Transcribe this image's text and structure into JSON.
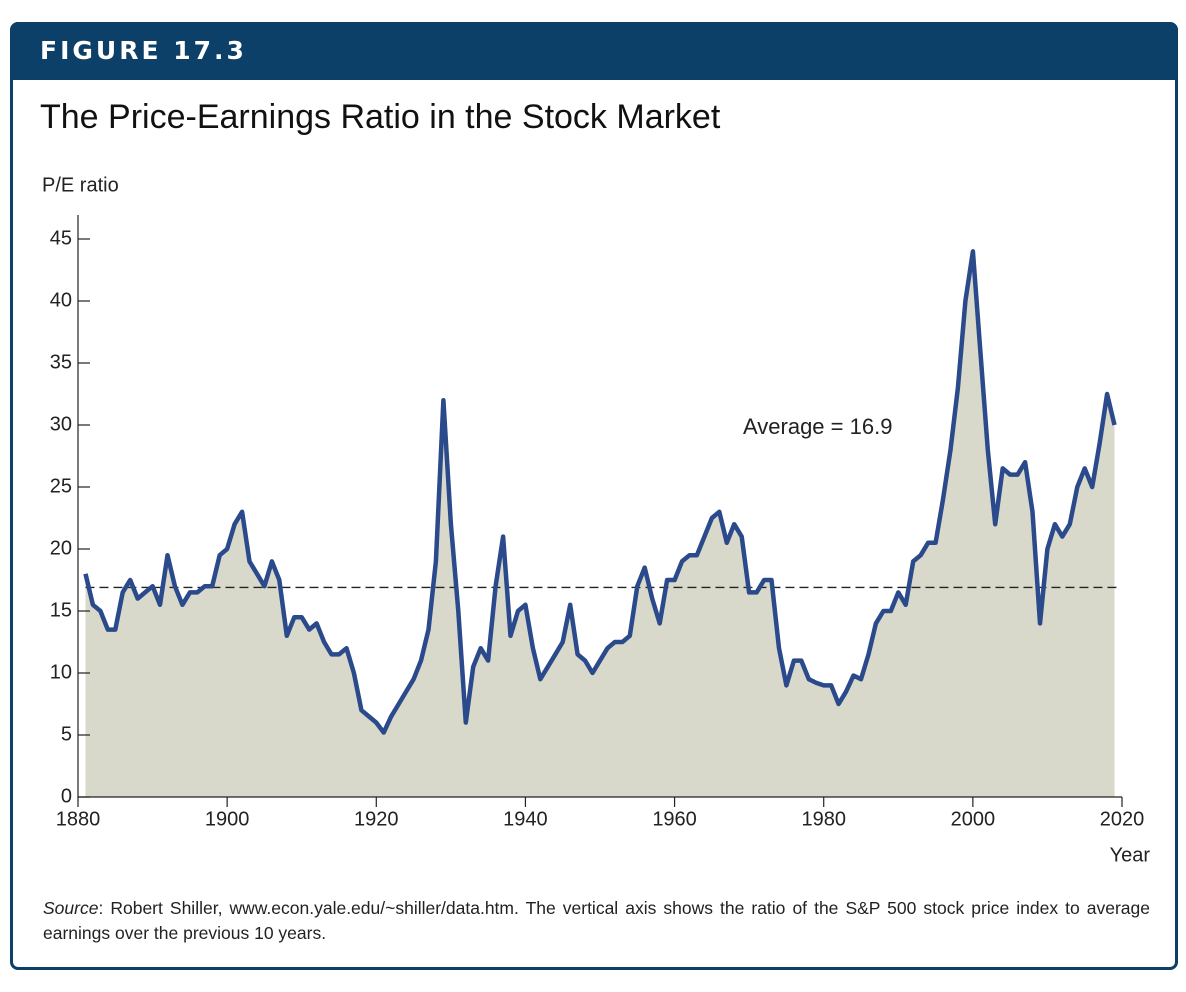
{
  "figure_label": "FIGURE 17.3",
  "chart_data": {
    "type": "area-line",
    "title": "The Price-Earnings Ratio in the Stock Market",
    "y_label": "P/E ratio",
    "x_label": "Year",
    "x": [
      1881,
      1882,
      1883,
      1884,
      1885,
      1886,
      1887,
      1888,
      1889,
      1890,
      1891,
      1892,
      1893,
      1894,
      1895,
      1896,
      1897,
      1898,
      1899,
      1900,
      1901,
      1902,
      1903,
      1904,
      1905,
      1906,
      1907,
      1908,
      1909,
      1910,
      1911,
      1912,
      1913,
      1914,
      1915,
      1916,
      1917,
      1918,
      1919,
      1920,
      1921,
      1922,
      1923,
      1924,
      1925,
      1926,
      1927,
      1928,
      1929,
      1930,
      1931,
      1932,
      1933,
      1934,
      1935,
      1936,
      1937,
      1938,
      1939,
      1940,
      1941,
      1942,
      1943,
      1944,
      1945,
      1946,
      1947,
      1948,
      1949,
      1950,
      1951,
      1952,
      1953,
      1954,
      1955,
      1956,
      1957,
      1958,
      1959,
      1960,
      1961,
      1962,
      1963,
      1964,
      1965,
      1966,
      1967,
      1968,
      1969,
      1970,
      1971,
      1972,
      1973,
      1974,
      1975,
      1976,
      1977,
      1978,
      1979,
      1980,
      1981,
      1982,
      1983,
      1984,
      1985,
      1986,
      1987,
      1988,
      1989,
      1990,
      1991,
      1992,
      1993,
      1994,
      1995,
      1996,
      1997,
      1998,
      1999,
      2000,
      2001,
      2002,
      2003,
      2004,
      2005,
      2006,
      2007,
      2008,
      2009,
      2010,
      2011,
      2012,
      2013,
      2014,
      2015,
      2016,
      2017,
      2018,
      2019
    ],
    "series": [
      {
        "name": "P/E ratio",
        "color": "#2a4a8c",
        "fill": "#d9d9cb",
        "values": [
          18,
          15.5,
          15,
          13.5,
          13.5,
          16.5,
          17.5,
          16,
          16.5,
          17,
          15.5,
          19.5,
          17,
          15.5,
          16.5,
          16.5,
          17,
          17,
          19.5,
          20,
          22,
          23,
          19,
          18,
          17,
          19,
          17.5,
          13,
          14.5,
          14.5,
          13.5,
          14,
          12.5,
          11.5,
          11.5,
          12,
          10,
          7,
          6.5,
          6,
          5.2,
          6.5,
          7.5,
          8.5,
          9.5,
          11,
          13.5,
          19,
          32,
          22,
          15,
          6,
          10.5,
          12,
          11,
          17,
          21,
          13,
          15,
          15.5,
          12,
          9.5,
          10.5,
          11.5,
          12.5,
          15.5,
          11.5,
          11,
          10,
          11,
          12,
          12.5,
          12.5,
          13,
          17,
          18.5,
          16,
          14,
          17.5,
          17.5,
          19,
          19.5,
          19.5,
          21,
          22.5,
          23,
          20.5,
          22,
          21,
          16.5,
          16.5,
          17.5,
          17.5,
          12,
          9,
          11,
          11,
          9.5,
          9.2,
          9,
          9,
          7.5,
          8.5,
          9.8,
          9.5,
          11.5,
          14,
          15,
          15,
          16.5,
          15.5,
          19,
          19.5,
          20.5,
          20.5,
          24,
          28,
          33,
          40,
          44,
          36,
          28,
          22,
          26.5,
          26,
          26,
          27,
          23,
          14,
          20,
          22,
          21,
          22,
          25,
          26.5,
          25,
          28.5,
          32.5,
          30
        ]
      }
    ],
    "average": 16.9,
    "annotation": "Average = 16.9",
    "xlim": [
      1880,
      2020
    ],
    "xticks": [
      1880,
      1900,
      1920,
      1940,
      1960,
      1980,
      2000,
      2020
    ],
    "ylim": [
      0,
      45
    ],
    "yticks": [
      0,
      5,
      10,
      15,
      20,
      25,
      30,
      35,
      40,
      45
    ]
  },
  "source": {
    "label": "Source",
    "text": ": Robert Shiller, www.econ.yale.edu/~shiller/data.htm. The vertical axis shows the ratio of the S&P 500 stock price index to average earnings over the previous 10 years."
  }
}
